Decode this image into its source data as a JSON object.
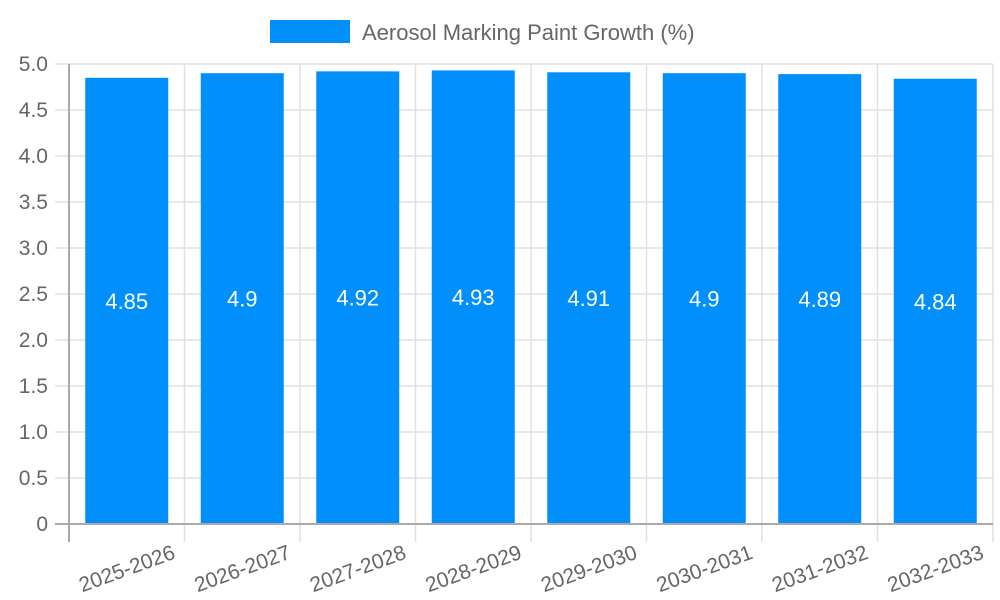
{
  "chart_data": {
    "type": "bar",
    "title": "",
    "legend": [
      {
        "label": "Aerosol Marking Paint Growth (%)",
        "color": "#008ffb"
      }
    ],
    "legend_position": "top",
    "categories": [
      "2025-2026",
      "2026-2027",
      "2027-2028",
      "2028-2029",
      "2029-2030",
      "2030-2031",
      "2031-2032",
      "2032-2033"
    ],
    "series": [
      {
        "name": "Aerosol Marking Paint Growth (%)",
        "values": [
          4.85,
          4.9,
          4.92,
          4.93,
          4.91,
          4.9,
          4.89,
          4.84
        ],
        "color": "#008ffb"
      }
    ],
    "data_labels": [
      "4.85",
      "4.9",
      "4.92",
      "4.93",
      "4.91",
      "4.9",
      "4.89",
      "4.84"
    ],
    "xlabel": "",
    "ylabel": "",
    "ylim": [
      0,
      5.0
    ],
    "yticks": [
      "0",
      "0.5",
      "1.0",
      "1.5",
      "2.0",
      "2.5",
      "3.0",
      "3.5",
      "4.0",
      "4.5",
      "5.0"
    ],
    "grid": true,
    "x_tick_rotation": -20
  }
}
